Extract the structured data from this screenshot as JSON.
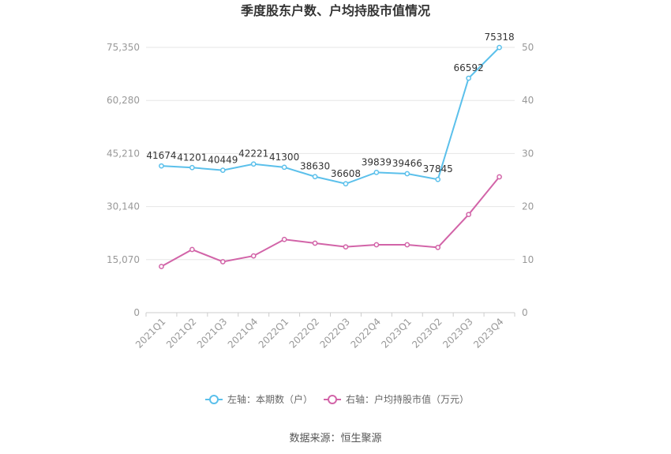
{
  "chart_data": {
    "type": "line",
    "title": "季度股东户数、户均持股市值情况",
    "categories": [
      "2021Q1",
      "2021Q2",
      "2021Q3",
      "2021Q4",
      "2022Q1",
      "2022Q2",
      "2022Q3",
      "2022Q4",
      "2023Q1",
      "2023Q2",
      "2023Q3",
      "2023Q4"
    ],
    "left_axis": {
      "ylim": [
        0,
        75350
      ],
      "ticks": [
        "0",
        "15,070",
        "30,140",
        "45,210",
        "60,280",
        "75,350"
      ]
    },
    "right_axis": {
      "ylim": [
        0,
        50
      ],
      "ticks": [
        "0",
        "10",
        "20",
        "30",
        "40",
        "50"
      ]
    },
    "series": [
      {
        "name": "左轴：本期数（户）",
        "axis": "left",
        "color": "#5bc0eb",
        "values": [
          41674,
          41201,
          40449,
          42221,
          41300,
          38630,
          36608,
          39839,
          39466,
          37845,
          66592,
          75318
        ],
        "labels": [
          "41674",
          "41201",
          "40449",
          "42221",
          "41300",
          "38630",
          "36608",
          "39839",
          "39466",
          "37845",
          "66592",
          "75318"
        ]
      },
      {
        "name": "右轴：户均持股市值（万元）",
        "axis": "right",
        "color": "#d264a8",
        "values": [
          8.7,
          11.9,
          9.6,
          10.7,
          13.8,
          13.1,
          12.4,
          12.8,
          12.8,
          12.3,
          18.5,
          25.6
        ]
      }
    ],
    "grid": true,
    "legend_position": "bottom"
  },
  "source": "数据来源：恒生聚源"
}
